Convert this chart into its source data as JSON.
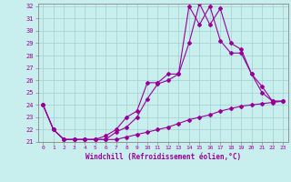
{
  "xlabel": "Windchill (Refroidissement éolien,°C)",
  "bg_color": "#c8eeed",
  "grid_color": "#a0d0d0",
  "line_color": "#990099",
  "spine_color": "#888888",
  "xlim": [
    -0.5,
    23.5
  ],
  "ylim": [
    21,
    32.2
  ],
  "yticks": [
    21,
    22,
    23,
    24,
    25,
    26,
    27,
    28,
    29,
    30,
    31,
    32
  ],
  "xticks": [
    0,
    1,
    2,
    3,
    4,
    5,
    6,
    7,
    8,
    9,
    10,
    11,
    12,
    13,
    14,
    15,
    16,
    17,
    18,
    19,
    20,
    21,
    22,
    23
  ],
  "line1_x": [
    0,
    1,
    2,
    3,
    4,
    5,
    6,
    7,
    8,
    9,
    10,
    11,
    12,
    13,
    14,
    15,
    16,
    17,
    18,
    19,
    20,
    21,
    22,
    23
  ],
  "line1_y": [
    24,
    22,
    21.2,
    21.2,
    21.2,
    21.2,
    21.2,
    21.2,
    21.4,
    21.6,
    21.8,
    22.0,
    22.2,
    22.5,
    22.8,
    23.0,
    23.2,
    23.5,
    23.7,
    23.9,
    24.0,
    24.1,
    24.2,
    24.3
  ],
  "line2_x": [
    0,
    1,
    2,
    3,
    4,
    5,
    6,
    7,
    8,
    9,
    10,
    11,
    12,
    13,
    14,
    15,
    16,
    17,
    18,
    19,
    20,
    21,
    22,
    23
  ],
  "line2_y": [
    24,
    22,
    21.2,
    21.2,
    21.2,
    21.2,
    21.5,
    22.0,
    23.0,
    23.5,
    25.8,
    25.8,
    26.5,
    26.5,
    32.0,
    30.5,
    32.0,
    29.2,
    28.2,
    28.2,
    26.5,
    25.5,
    24.3,
    24.3
  ],
  "line3_x": [
    0,
    1,
    2,
    3,
    4,
    5,
    6,
    7,
    8,
    9,
    10,
    11,
    12,
    13,
    14,
    15,
    16,
    17,
    18,
    19,
    20,
    21,
    22,
    23
  ],
  "line3_y": [
    24,
    22,
    21.2,
    21.2,
    21.2,
    21.2,
    21.2,
    21.8,
    22.2,
    23.0,
    24.5,
    25.7,
    26.0,
    26.5,
    29.0,
    32.2,
    30.5,
    31.8,
    29.0,
    28.5,
    26.5,
    25.0,
    24.3,
    24.3
  ]
}
